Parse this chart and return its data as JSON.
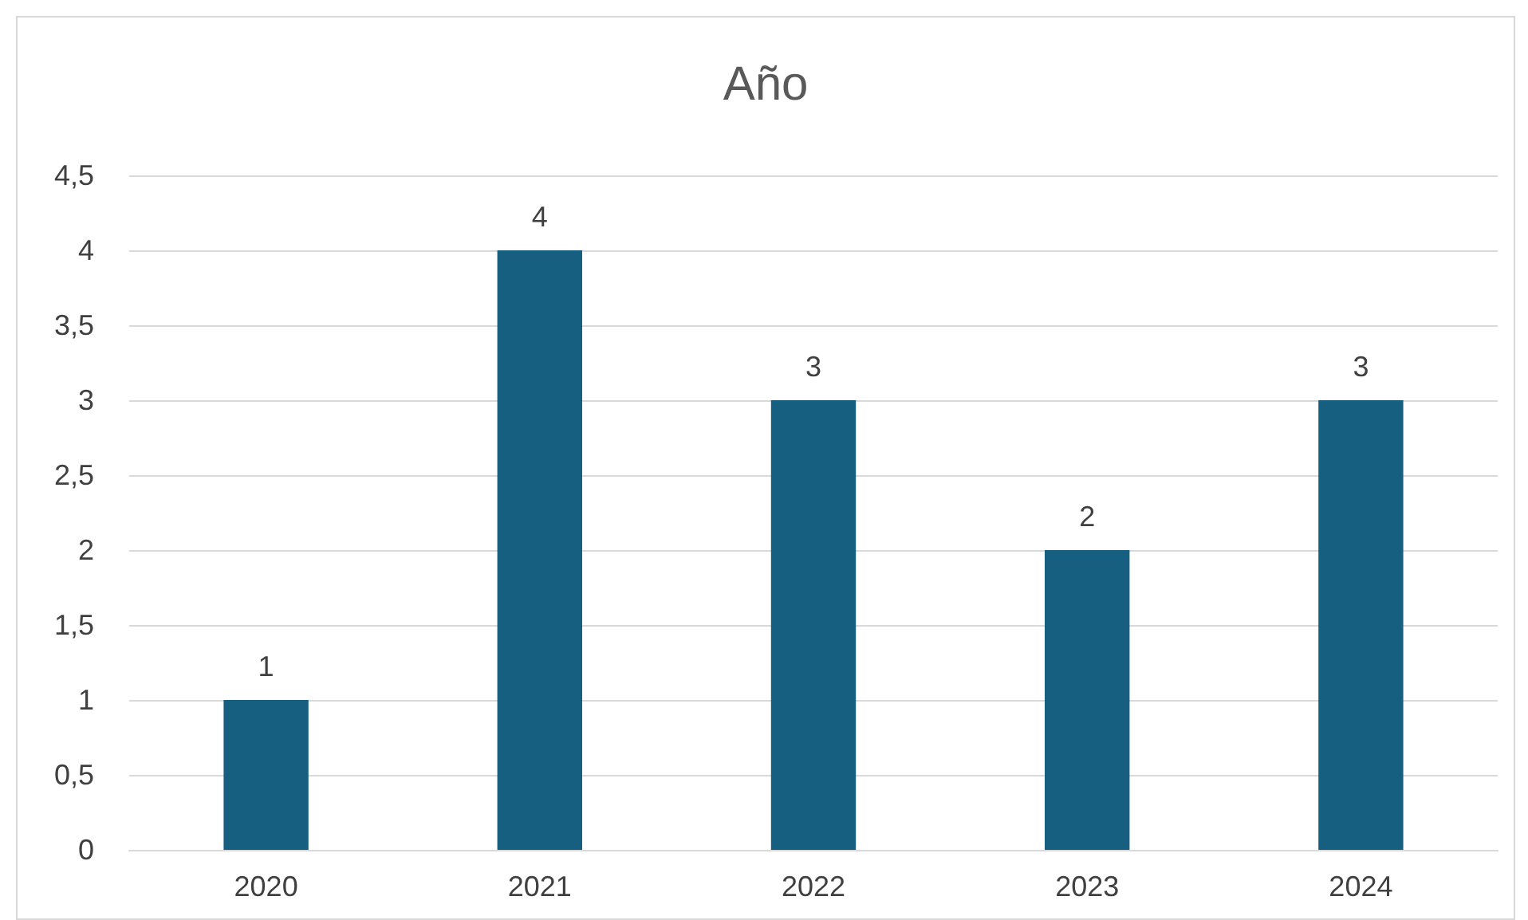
{
  "chart_data": {
    "type": "bar",
    "title": "Año",
    "categories": [
      "2020",
      "2021",
      "2022",
      "2023",
      "2024"
    ],
    "values": [
      1,
      4,
      3,
      2,
      3
    ],
    "color": "#165f80",
    "ylim": [
      0,
      4.5
    ],
    "yticks": [
      0,
      {
        "value": 0.5,
        "label": "0,5"
      },
      1,
      {
        "value": 1.5,
        "label": "1,5"
      },
      2,
      {
        "value": 2.5,
        "label": "2,5"
      },
      3,
      {
        "value": 3.5,
        "label": "3,5"
      },
      4,
      {
        "value": 4.5,
        "label": "4,5"
      }
    ],
    "grid": "y",
    "data_labels": true
  }
}
